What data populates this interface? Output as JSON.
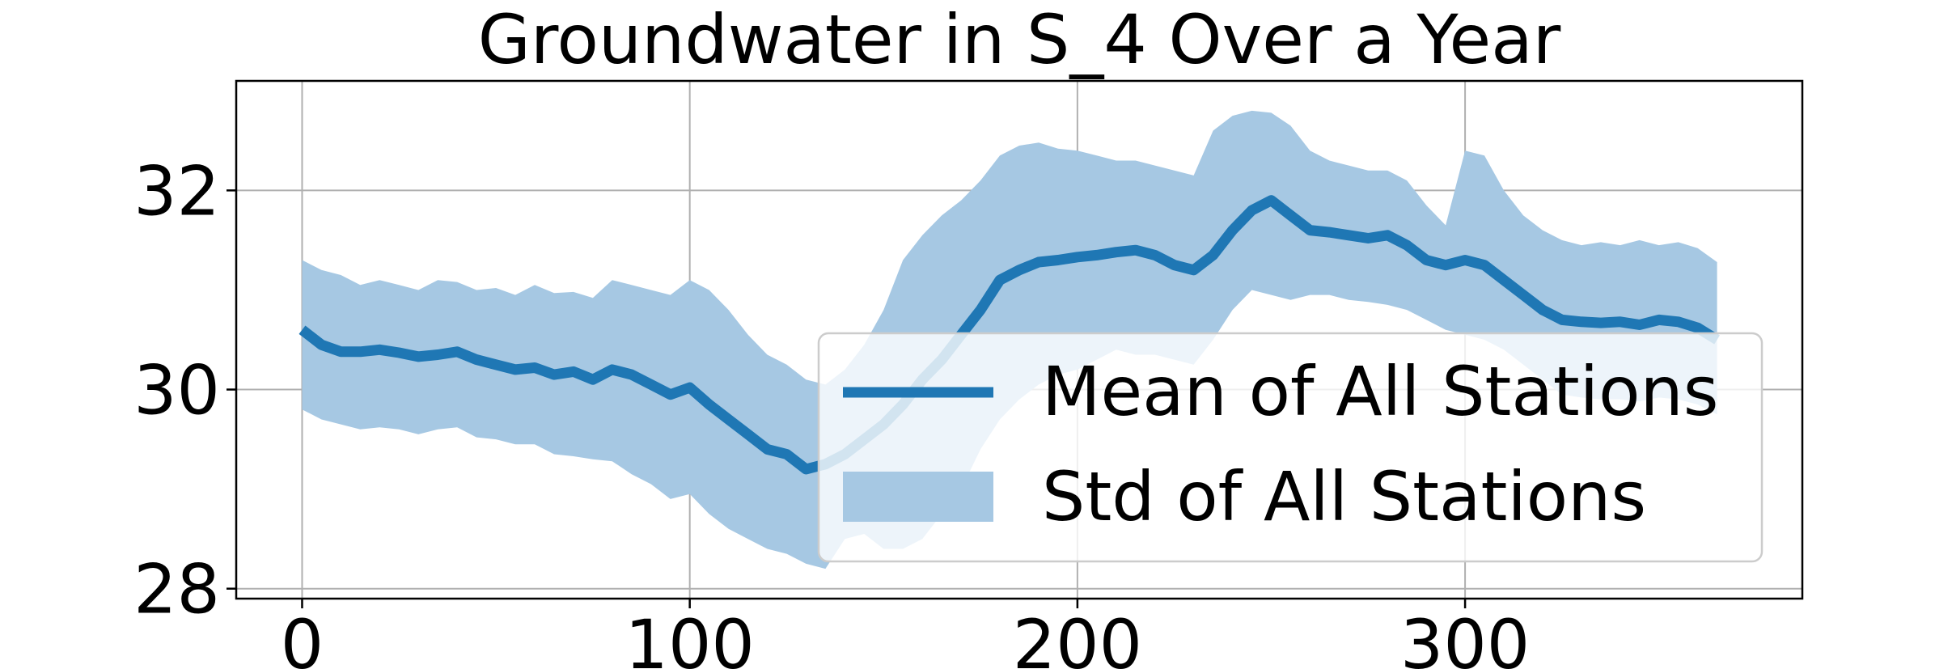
{
  "chart_data": {
    "type": "line",
    "title": "Groundwater in S_4 Over a Year",
    "xlabel": "",
    "ylabel": "",
    "xlim": [
      -17,
      387
    ],
    "ylim": [
      27.9,
      33.1
    ],
    "xticks": [
      0,
      100,
      200,
      300
    ],
    "yticks": [
      28,
      30,
      32
    ],
    "grid": true,
    "legend_position": "center-right",
    "colors": {
      "mean": "#1f77b4",
      "std": "#a6c8e3"
    },
    "series": [
      {
        "name": "Mean of All Stations",
        "kind": "line",
        "x": [
          0,
          5,
          10,
          15,
          20,
          25,
          30,
          35,
          40,
          45,
          50,
          55,
          60,
          65,
          70,
          75,
          80,
          85,
          90,
          95,
          100,
          105,
          110,
          115,
          120,
          125,
          130,
          135,
          140,
          145,
          150,
          155,
          160,
          165,
          170,
          175,
          180,
          185,
          190,
          195,
          200,
          205,
          210,
          215,
          220,
          225,
          230,
          235,
          240,
          245,
          250,
          255,
          260,
          265,
          270,
          275,
          280,
          285,
          290,
          295,
          300,
          305,
          310,
          315,
          320,
          325,
          330,
          335,
          340,
          345,
          350,
          355,
          360,
          365
        ],
        "y": [
          30.6,
          30.45,
          30.38,
          30.38,
          30.4,
          30.37,
          30.33,
          30.35,
          30.38,
          30.3,
          30.25,
          30.2,
          30.22,
          30.15,
          30.18,
          30.1,
          30.2,
          30.15,
          30.05,
          29.95,
          30.02,
          29.85,
          29.7,
          29.55,
          29.4,
          29.35,
          29.2,
          29.25,
          29.35,
          29.5,
          29.65,
          29.85,
          30.1,
          30.3,
          30.55,
          30.8,
          31.1,
          31.2,
          31.28,
          31.3,
          31.33,
          31.35,
          31.38,
          31.4,
          31.35,
          31.25,
          31.2,
          31.35,
          31.6,
          31.8,
          31.9,
          31.75,
          31.6,
          31.58,
          31.55,
          31.52,
          31.55,
          31.45,
          31.3,
          31.25,
          31.3,
          31.25,
          31.1,
          30.95,
          30.8,
          30.7,
          30.68,
          30.67,
          30.68,
          30.65,
          30.7,
          30.68,
          30.62,
          30.5
        ]
      },
      {
        "name": "Std of All Stations",
        "kind": "band",
        "x": [
          0,
          5,
          10,
          15,
          20,
          25,
          30,
          35,
          40,
          45,
          50,
          55,
          60,
          65,
          70,
          75,
          80,
          85,
          90,
          95,
          100,
          105,
          110,
          115,
          120,
          125,
          130,
          135,
          140,
          145,
          150,
          155,
          160,
          165,
          170,
          175,
          180,
          185,
          190,
          195,
          200,
          205,
          210,
          215,
          220,
          225,
          230,
          235,
          240,
          245,
          250,
          255,
          260,
          265,
          270,
          275,
          280,
          285,
          290,
          295,
          300,
          305,
          310,
          315,
          320,
          325,
          330,
          335,
          340,
          345,
          350,
          355,
          360,
          365
        ],
        "upper": [
          31.3,
          31.2,
          31.15,
          31.05,
          31.1,
          31.05,
          31.0,
          31.1,
          31.08,
          31.0,
          31.02,
          30.95,
          31.05,
          30.97,
          30.98,
          30.92,
          31.1,
          31.05,
          31.0,
          30.95,
          31.1,
          31.0,
          30.8,
          30.55,
          30.35,
          30.25,
          30.1,
          30.05,
          30.2,
          30.45,
          30.8,
          31.3,
          31.55,
          31.75,
          31.9,
          32.1,
          32.35,
          32.45,
          32.48,
          32.42,
          32.4,
          32.35,
          32.3,
          32.3,
          32.25,
          32.2,
          32.15,
          32.6,
          32.75,
          32.8,
          32.78,
          32.65,
          32.4,
          32.3,
          32.25,
          32.2,
          32.2,
          32.1,
          31.85,
          31.65,
          32.4,
          32.35,
          32.0,
          31.75,
          31.6,
          31.5,
          31.45,
          31.48,
          31.45,
          31.5,
          31.45,
          31.48,
          31.42,
          31.28
        ],
        "lower": [
          29.8,
          29.7,
          29.65,
          29.6,
          29.62,
          29.6,
          29.55,
          29.6,
          29.62,
          29.52,
          29.5,
          29.45,
          29.45,
          29.35,
          29.33,
          29.3,
          29.28,
          29.15,
          29.05,
          28.9,
          28.95,
          28.75,
          28.6,
          28.5,
          28.4,
          28.35,
          28.25,
          28.2,
          28.5,
          28.55,
          28.4,
          28.4,
          28.5,
          28.75,
          29.0,
          29.4,
          29.7,
          29.9,
          30.05,
          30.15,
          30.2,
          30.3,
          30.4,
          30.35,
          30.35,
          30.3,
          30.25,
          30.5,
          30.8,
          31.0,
          30.95,
          30.9,
          30.95,
          30.95,
          30.9,
          30.88,
          30.85,
          30.8,
          30.7,
          30.6,
          30.55,
          30.5,
          30.4,
          30.25,
          30.1,
          29.95,
          29.92,
          29.9,
          29.9,
          29.88,
          29.92,
          29.9,
          29.85,
          29.75
        ]
      }
    ]
  },
  "legend": {
    "mean_label": "Mean of All Stations",
    "std_label": "Std of All Stations"
  }
}
